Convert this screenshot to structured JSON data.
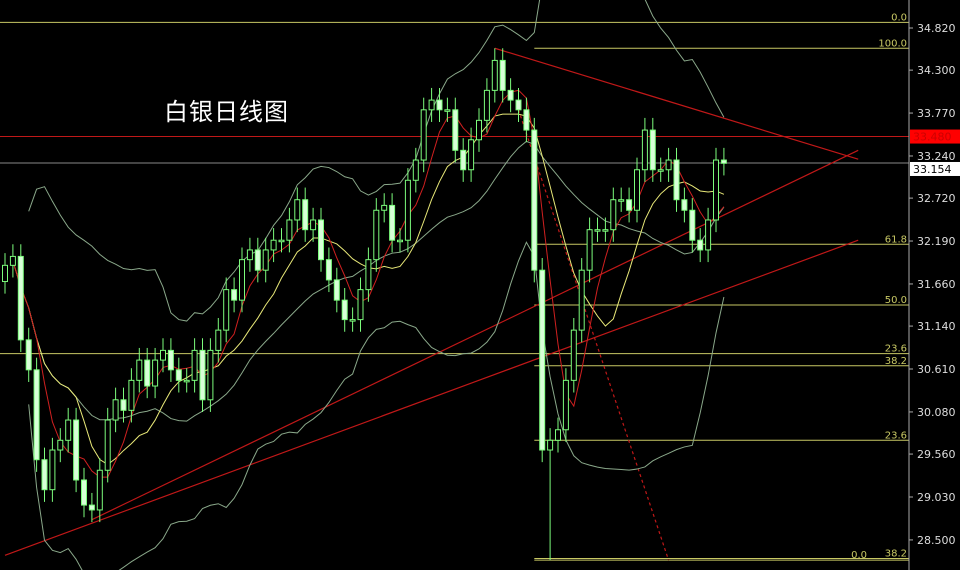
{
  "chart_data": {
    "type": "candlestick",
    "title": "白银日线图",
    "ylim": [
      28.25,
      35.15
    ],
    "y_ticks": [
      "34.820",
      "34.300",
      "33.770",
      "33.240",
      "32.720",
      "32.190",
      "31.660",
      "31.140",
      "30.610",
      "30.080",
      "29.560",
      "29.030",
      "28.500"
    ],
    "grid": false,
    "up_color": "#7CFC7C",
    "closes": [
      31.89,
      32.0,
      30.97,
      30.6,
      29.49,
      29.12,
      29.61,
      29.73,
      29.98,
      29.24,
      28.93,
      28.87,
      29.36,
      29.98,
      30.23,
      30.1,
      30.47,
      30.72,
      30.4,
      30.72,
      30.84,
      30.6,
      30.47,
      30.47,
      30.84,
      30.23,
      30.84,
      31.09,
      31.59,
      31.46,
      31.96,
      32.08,
      31.83,
      32.08,
      32.2,
      32.2,
      32.45,
      32.7,
      32.33,
      32.45,
      31.96,
      31.71,
      31.46,
      31.22,
      31.22,
      31.59,
      31.96,
      32.57,
      32.63,
      32.2,
      32.2,
      32.94,
      33.19,
      33.81,
      33.93,
      33.81,
      33.81,
      33.31,
      33.07,
      33.44,
      33.68,
      34.05,
      34.42,
      34.05,
      33.93,
      33.81,
      33.56,
      31.83,
      29.61,
      29.73,
      29.86,
      30.47,
      31.09,
      31.83,
      32.33,
      32.33,
      32.33,
      32.7,
      32.7,
      32.57,
      33.07,
      33.56,
      33.07,
      33.07,
      33.19,
      32.7,
      32.57,
      32.2,
      32.08,
      32.45,
      33.19,
      33.15
    ],
    "period_high": 34.57,
    "period_low": 28.25,
    "price_markers": {
      "resistance": {
        "label": "33.480",
        "value": 33.48,
        "color": "#FF0000"
      },
      "current": {
        "label": "33.154",
        "value": 33.154,
        "color": "#FFFFFF"
      }
    },
    "fibonacci_levels": [
      {
        "label": "0.0",
        "value": 34.89,
        "full_width": true
      },
      {
        "label": "100.0",
        "value": 34.57
      },
      {
        "label": "61.8",
        "value": 32.15
      },
      {
        "label": "50.0",
        "value": 31.4
      },
      {
        "label": "23.6",
        "value": 30.8,
        "full_width": true
      },
      {
        "label": "38.2",
        "value": 30.65
      },
      {
        "label": "23.6",
        "value": 29.73
      },
      {
        "label": "38.2",
        "value": 28.27
      },
      {
        "label": "0.0",
        "value": 28.25
      }
    ],
    "trendlines": [
      {
        "from": [
          62,
          34.57
        ],
        "to": [
          108,
          33.2
        ],
        "color": "#C01818",
        "style": "solid"
      },
      {
        "from": [
          0,
          28.31
        ],
        "to": [
          108,
          32.2
        ],
        "color": "#C01818",
        "style": "solid"
      },
      {
        "from": [
          11,
          28.75
        ],
        "to": [
          108,
          33.31
        ],
        "color": "#C01818",
        "style": "solid"
      },
      {
        "from": [
          65,
          33.81
        ],
        "to": [
          84,
          28.25
        ],
        "color": "#C01818",
        "style": "dotted"
      }
    ]
  }
}
